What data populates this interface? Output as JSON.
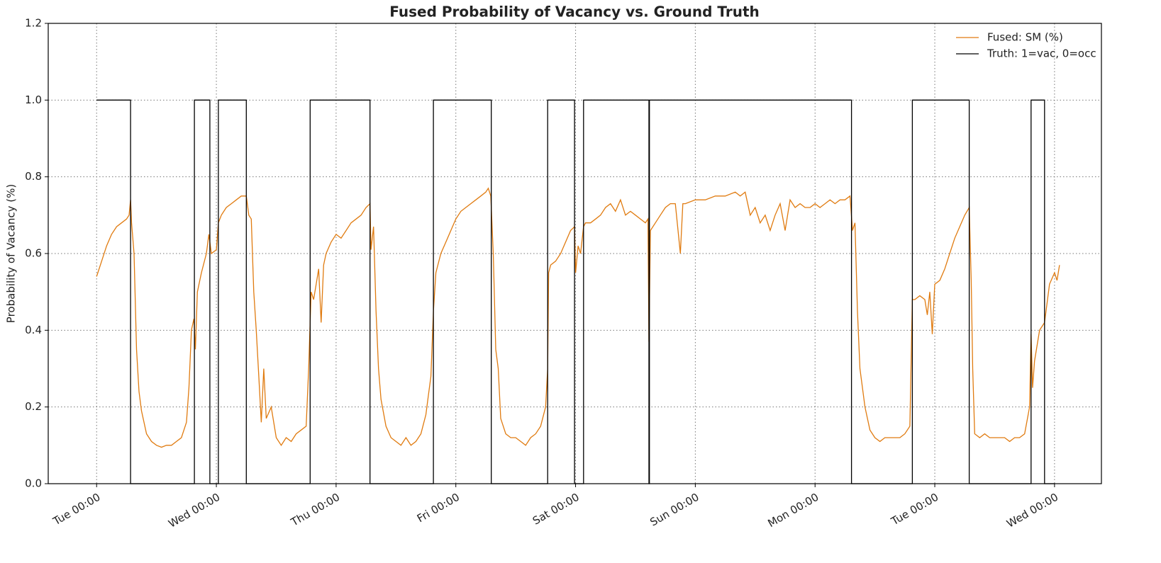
{
  "chart_data": {
    "type": "line",
    "title": "Fused Probability of Vacancy vs. Ground Truth",
    "ylabel": "Probability of Vacancy (%)",
    "xlim": [
      -9.7,
      201.4
    ],
    "xticks": [
      {
        "value": 0,
        "label": "Tue 00:00"
      },
      {
        "value": 24,
        "label": "Wed 00:00"
      },
      {
        "value": 48,
        "label": "Thu 00:00"
      },
      {
        "value": 72,
        "label": "Fri 00:00"
      },
      {
        "value": 96,
        "label": "Sat 00:00"
      },
      {
        "value": 120,
        "label": "Sun 00:00"
      },
      {
        "value": 144,
        "label": "Mon 00:00"
      },
      {
        "value": 168,
        "label": "Tue 00:00"
      },
      {
        "value": 192,
        "label": "Wed 00:00"
      }
    ],
    "ylim": [
      0,
      1.2
    ],
    "yticks": [
      {
        "value": 0,
        "label": "0.0"
      },
      0.2,
      0.4,
      0.6,
      0.8,
      {
        "value": 1,
        "label": "1.0"
      },
      1.2
    ],
    "grid": true,
    "legend": "upper right",
    "series": [
      {
        "name": "Fused: SM (%)",
        "color": "#e07b10",
        "x": [
          0,
          1,
          2,
          3,
          4,
          5,
          6,
          6.5,
          6.8,
          7,
          7.5,
          8,
          8.5,
          9,
          10,
          11,
          12,
          13,
          14,
          15,
          16,
          17,
          18,
          18.5,
          19,
          19.5,
          19.8,
          20.2,
          21,
          22,
          22.5,
          23,
          24,
          24.4,
          25,
          26,
          27,
          28,
          29,
          30,
          30.5,
          31,
          31.5,
          32,
          32.5,
          33,
          33.5,
          34,
          35,
          36,
          37,
          38,
          39,
          40,
          41,
          42,
          42.5,
          43,
          43.5,
          44,
          44.5,
          45,
          45.5,
          46,
          47,
          48,
          49,
          50,
          51,
          52,
          53,
          54,
          54.8,
          55,
          55.5,
          56,
          56.5,
          57,
          58,
          59,
          60,
          61,
          62,
          63,
          64,
          65,
          66,
          66.5,
          67,
          67.5,
          68,
          69,
          70,
          71,
          72,
          73,
          74,
          75,
          76,
          77,
          78,
          78.5,
          79,
          79.5,
          80,
          80.5,
          81,
          82,
          83,
          84,
          85,
          86,
          87,
          88,
          89,
          90,
          90.4,
          90.6,
          91,
          92,
          93,
          94,
          95,
          95.8,
          96,
          96.5,
          97,
          97.6,
          98,
          99,
          100,
          101,
          102,
          103,
          104,
          105,
          106,
          107,
          108,
          109,
          110,
          110.5,
          110.7,
          111,
          112,
          113,
          114,
          115,
          116,
          117,
          117.5,
          118,
          120,
          122,
          124,
          126,
          128,
          129,
          130,
          131,
          132,
          133,
          134,
          135,
          136,
          137,
          138,
          139,
          140,
          141,
          142,
          143,
          144,
          145,
          146,
          147,
          148,
          149,
          150,
          151,
          151.5,
          152,
          152.5,
          153,
          154,
          155,
          156,
          157,
          158,
          159,
          160,
          161,
          162,
          163,
          163.5,
          164,
          165,
          166,
          166.5,
          167,
          167.5,
          168,
          169,
          170,
          171,
          172,
          173,
          174,
          174.9,
          175.3,
          175.6,
          176,
          177,
          178,
          179,
          180,
          181,
          182,
          183,
          184,
          185,
          186,
          187,
          187.3,
          187.6,
          188,
          189,
          190,
          191,
          192,
          192.5,
          193
        ],
        "values": [
          0.54,
          0.58,
          0.62,
          0.65,
          0.67,
          0.68,
          0.69,
          0.7,
          0.74,
          0.68,
          0.6,
          0.35,
          0.24,
          0.19,
          0.13,
          0.11,
          0.1,
          0.095,
          0.1,
          0.1,
          0.11,
          0.12,
          0.16,
          0.25,
          0.4,
          0.43,
          0.35,
          0.5,
          0.55,
          0.6,
          0.65,
          0.6,
          0.61,
          0.68,
          0.7,
          0.72,
          0.73,
          0.74,
          0.75,
          0.75,
          0.7,
          0.69,
          0.5,
          0.4,
          0.28,
          0.16,
          0.3,
          0.17,
          0.2,
          0.12,
          0.1,
          0.12,
          0.11,
          0.13,
          0.14,
          0.15,
          0.3,
          0.5,
          0.48,
          0.52,
          0.56,
          0.42,
          0.57,
          0.6,
          0.63,
          0.65,
          0.64,
          0.66,
          0.68,
          0.69,
          0.7,
          0.72,
          0.73,
          0.61,
          0.67,
          0.45,
          0.3,
          0.22,
          0.15,
          0.12,
          0.11,
          0.1,
          0.12,
          0.1,
          0.11,
          0.13,
          0.18,
          0.23,
          0.28,
          0.45,
          0.55,
          0.6,
          0.63,
          0.66,
          0.69,
          0.71,
          0.72,
          0.73,
          0.74,
          0.75,
          0.76,
          0.77,
          0.75,
          0.6,
          0.35,
          0.3,
          0.17,
          0.13,
          0.12,
          0.12,
          0.11,
          0.1,
          0.12,
          0.13,
          0.15,
          0.2,
          0.3,
          0.55,
          0.57,
          0.58,
          0.6,
          0.63,
          0.66,
          0.67,
          0.55,
          0.62,
          0.6,
          0.67,
          0.68,
          0.68,
          0.69,
          0.7,
          0.72,
          0.73,
          0.71,
          0.74,
          0.7,
          0.71,
          0.7,
          0.69,
          0.68,
          0.69,
          0.37,
          0.66,
          0.68,
          0.7,
          0.72,
          0.73,
          0.73,
          0.6,
          0.73,
          0.73,
          0.74,
          0.74,
          0.75,
          0.75,
          0.76,
          0.75,
          0.76,
          0.7,
          0.72,
          0.68,
          0.7,
          0.66,
          0.7,
          0.73,
          0.66,
          0.74,
          0.72,
          0.73,
          0.72,
          0.72,
          0.73,
          0.72,
          0.73,
          0.74,
          0.73,
          0.74,
          0.74,
          0.75,
          0.66,
          0.68,
          0.45,
          0.3,
          0.2,
          0.14,
          0.12,
          0.11,
          0.12,
          0.12,
          0.12,
          0.12,
          0.13,
          0.15,
          0.48,
          0.48,
          0.49,
          0.48,
          0.44,
          0.5,
          0.39,
          0.52,
          0.53,
          0.56,
          0.6,
          0.64,
          0.67,
          0.7,
          0.72,
          0.53,
          0.3,
          0.13,
          0.12,
          0.13,
          0.12,
          0.12,
          0.12,
          0.12,
          0.11,
          0.12,
          0.12,
          0.13,
          0.2,
          0.39,
          0.25,
          0.32,
          0.4,
          0.42,
          0.52,
          0.55,
          0.53,
          0.57
        ]
      },
      {
        "name": "Truth: 1=vac, 0=occ",
        "color": "#000000",
        "x": [
          0,
          6.8,
          6.8,
          19.6,
          19.6,
          22.7,
          22.7,
          24.4,
          24.4,
          30.0,
          30.0,
          42.8,
          42.8,
          54.8,
          54.8,
          67.5,
          67.5,
          79.1,
          79.1,
          90.4,
          90.4,
          95.8,
          95.8,
          97.6,
          97.6,
          110.7,
          110.7,
          110.8,
          110.8,
          151.3,
          151.3,
          163.5,
          163.5,
          174.9,
          174.9,
          187.3,
          187.3,
          190.0,
          190.0,
          192
        ],
        "values": [
          1,
          1,
          0,
          0,
          1,
          1,
          0,
          0,
          1,
          1,
          0,
          0,
          1,
          1,
          0,
          0,
          1,
          1,
          0,
          0,
          1,
          1,
          0,
          0,
          1,
          1,
          0,
          0,
          1,
          1,
          0,
          0,
          1,
          1,
          0,
          0,
          1,
          1,
          0,
          0
        ]
      }
    ]
  }
}
